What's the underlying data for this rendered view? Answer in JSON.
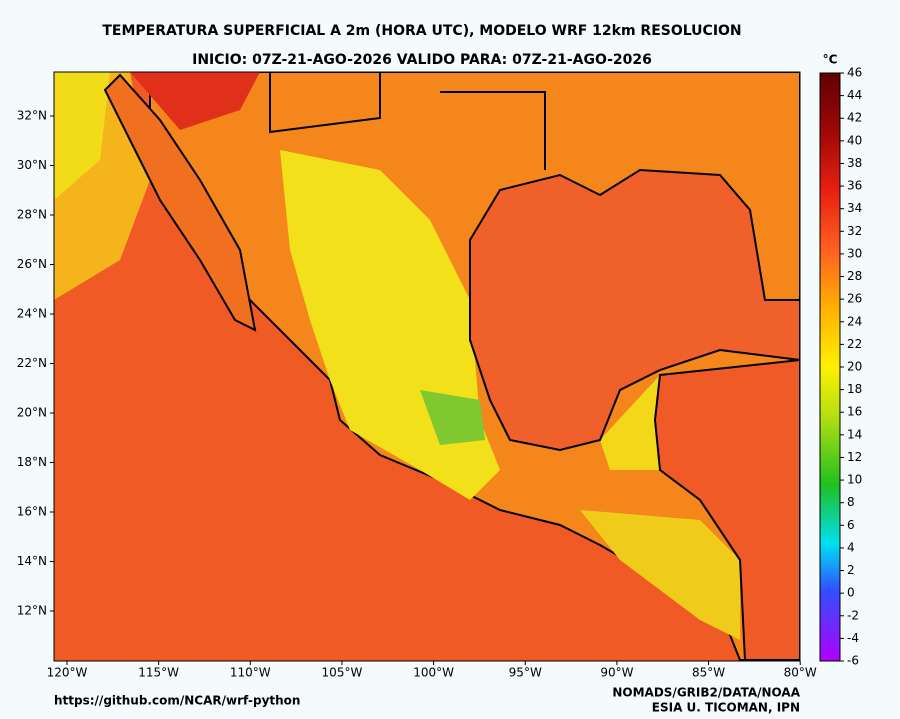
{
  "title": "TEMPERATURA SUPERFICIAL A 2m  (HORA UTC), MODELO WRF 12km RESOLUCION",
  "subtitle": "INICIO: 07Z-21-AGO-2026    VALIDO PARA: 07Z-21-AGO-2026",
  "map": {
    "lat_ticks": [
      {
        "value": 12,
        "label": "12°N"
      },
      {
        "value": 14,
        "label": "14°N"
      },
      {
        "value": 16,
        "label": "16°N"
      },
      {
        "value": 18,
        "label": "18°N"
      },
      {
        "value": 20,
        "label": "20°N"
      },
      {
        "value": 22,
        "label": "22°N"
      },
      {
        "value": 24,
        "label": "24°N"
      },
      {
        "value": 26,
        "label": "26°N"
      },
      {
        "value": 28,
        "label": "28°N"
      },
      {
        "value": 30,
        "label": "30°N"
      },
      {
        "value": 32,
        "label": "32°N"
      }
    ],
    "lon_ticks": [
      {
        "value": -120,
        "label": "120°W"
      },
      {
        "value": -115,
        "label": "115°W"
      },
      {
        "value": -110,
        "label": "110°W"
      },
      {
        "value": -105,
        "label": "105°W"
      },
      {
        "value": -100,
        "label": "100°W"
      },
      {
        "value": -95,
        "label": "95°W"
      },
      {
        "value": -90,
        "label": "90°W"
      },
      {
        "value": -85,
        "label": "85°W"
      },
      {
        "value": -80,
        "label": "80°W"
      }
    ]
  },
  "colorbar": {
    "unit": "°C",
    "ticks": [
      -6,
      -4,
      -2,
      0,
      2,
      4,
      6,
      8,
      10,
      12,
      14,
      16,
      18,
      20,
      22,
      24,
      26,
      28,
      30,
      32,
      34,
      36,
      38,
      40,
      42,
      44,
      46
    ]
  },
  "footer": {
    "left": "https://github.com/NCAR/wrf-python",
    "right_1": "NOMADS/GRIB2/DATA/NOAA",
    "right_2": "ESIA U. TICOMAN, IPN"
  }
}
